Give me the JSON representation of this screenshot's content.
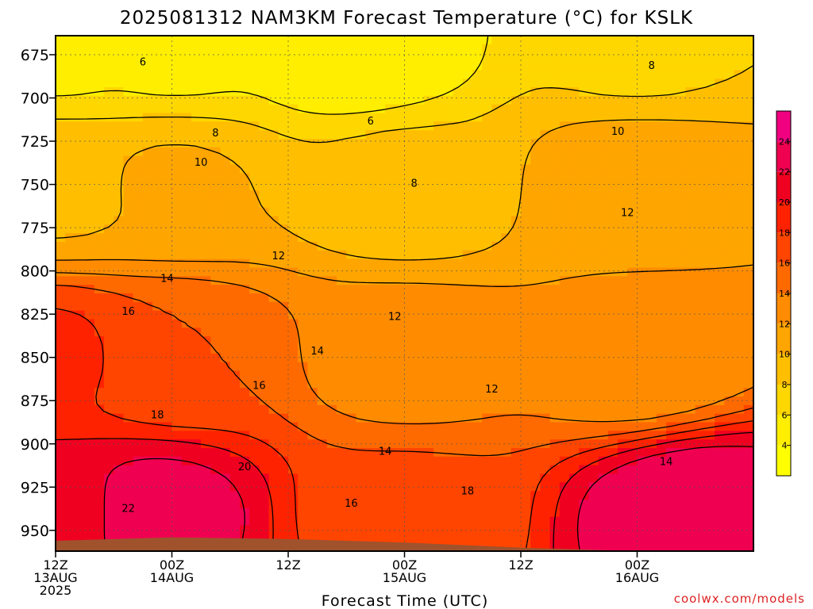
{
  "chart_data": {
    "type": "heatmap",
    "title": "2025081312 NAM3KM Forecast Temperature (°C) for KSLK",
    "xlabel": "Forecast Time (UTC)",
    "ylabel": "",
    "ylim": [
      962,
      664
    ],
    "y_ticks": [
      "675",
      "700",
      "725",
      "750",
      "775",
      "800",
      "825",
      "850",
      "875",
      "900",
      "925",
      "950"
    ],
    "x_ticks": [
      {
        "lines": [
          "12Z",
          "13AUG",
          "2025"
        ]
      },
      {
        "lines": [
          "00Z",
          "14AUG"
        ]
      },
      {
        "lines": [
          "12Z"
        ]
      },
      {
        "lines": [
          "00Z",
          "15AUG"
        ]
      },
      {
        "lines": [
          "12Z"
        ]
      },
      {
        "lines": [
          "00Z",
          "16AUG"
        ]
      }
    ],
    "colorbar": {
      "levels": [
        2,
        4,
        6,
        8,
        10,
        12,
        14,
        16,
        18,
        20,
        22,
        24,
        26
      ],
      "tick_labels": [
        "4",
        "6",
        "8",
        "10",
        "12",
        "14",
        "16",
        "18",
        "20",
        "22",
        "24"
      ],
      "colors": [
        "#ffff00",
        "#ffee00",
        "#ffd700",
        "#ffbf00",
        "#ffa500",
        "#ff8c00",
        "#ff6a00",
        "#ff4500",
        "#ff2200",
        "#f00020",
        "#f00050",
        "#f00080"
      ]
    },
    "contour_levels": [
      6,
      8,
      10,
      12,
      14,
      16,
      18,
      20,
      22
    ],
    "contour_labels": [
      {
        "text": "6",
        "time_h": 9,
        "pressure": 679
      },
      {
        "text": "8",
        "time_h": 16.5,
        "pressure": 720
      },
      {
        "text": "10",
        "time_h": 15,
        "pressure": 737
      },
      {
        "text": "12",
        "time_h": 23,
        "pressure": 791
      },
      {
        "text": "14",
        "time_h": 11.5,
        "pressure": 804
      },
      {
        "text": "16",
        "time_h": 7.5,
        "pressure": 823
      },
      {
        "text": "14",
        "time_h": 27,
        "pressure": 846
      },
      {
        "text": "16",
        "time_h": 21,
        "pressure": 866
      },
      {
        "text": "18",
        "time_h": 10.5,
        "pressure": 883
      },
      {
        "text": "20",
        "time_h": 19.5,
        "pressure": 913
      },
      {
        "text": "22",
        "time_h": 7.5,
        "pressure": 937
      },
      {
        "text": "6",
        "time_h": 32.5,
        "pressure": 713
      },
      {
        "text": "8",
        "time_h": 37,
        "pressure": 749
      },
      {
        "text": "12",
        "time_h": 35,
        "pressure": 826
      },
      {
        "text": "14",
        "time_h": 34,
        "pressure": 904
      },
      {
        "text": "16",
        "time_h": 30.5,
        "pressure": 934
      },
      {
        "text": "18",
        "time_h": 42.5,
        "pressure": 927
      },
      {
        "text": "12",
        "time_h": 45,
        "pressure": 868
      },
      {
        "text": "8",
        "time_h": 61.5,
        "pressure": 681
      },
      {
        "text": "10",
        "time_h": 58,
        "pressure": 719
      },
      {
        "text": "12",
        "time_h": 59,
        "pressure": 766
      },
      {
        "text": "14",
        "time_h": 63,
        "pressure": 910
      }
    ],
    "field_points": [
      {
        "time_h": 0,
        "pressure": 670,
        "temp": 5.5
      },
      {
        "time_h": 12,
        "pressure": 670,
        "temp": 5.5
      },
      {
        "time_h": 31,
        "pressure": 670,
        "temp": 4.2
      },
      {
        "time_h": 60,
        "pressure": 670,
        "temp": 7.6
      },
      {
        "time_h": 0,
        "pressure": 750,
        "temp": 9.5
      },
      {
        "time_h": 12,
        "pressure": 750,
        "temp": 10.2
      },
      {
        "time_h": 36,
        "pressure": 750,
        "temp": 8.5
      },
      {
        "time_h": 60,
        "pressure": 750,
        "temp": 11.5
      },
      {
        "time_h": 0,
        "pressure": 850,
        "temp": 18.5
      },
      {
        "time_h": 12,
        "pressure": 850,
        "temp": 16.0
      },
      {
        "time_h": 36,
        "pressure": 850,
        "temp": 13.0
      },
      {
        "time_h": 60,
        "pressure": 850,
        "temp": 12.5
      },
      {
        "time_h": 0,
        "pressure": 940,
        "temp": 21.0
      },
      {
        "time_h": 10,
        "pressure": 940,
        "temp": 23.0
      },
      {
        "time_h": 36,
        "pressure": 940,
        "temp": 16.5
      },
      {
        "time_h": 66,
        "pressure": 940,
        "temp": 24.0
      }
    ],
    "surface_pressure": [
      {
        "time_h": 0,
        "pressure": 956
      },
      {
        "time_h": 12,
        "pressure": 954
      },
      {
        "time_h": 24,
        "pressure": 955
      },
      {
        "time_h": 36,
        "pressure": 957
      },
      {
        "time_h": 48,
        "pressure": 960
      },
      {
        "time_h": 60,
        "pressure": 962
      },
      {
        "time_h": 72,
        "pressure": 962
      }
    ],
    "colors": {
      "ground": "#a0522d",
      "contour": "#000000"
    }
  },
  "credit": "coolwx.com/models"
}
